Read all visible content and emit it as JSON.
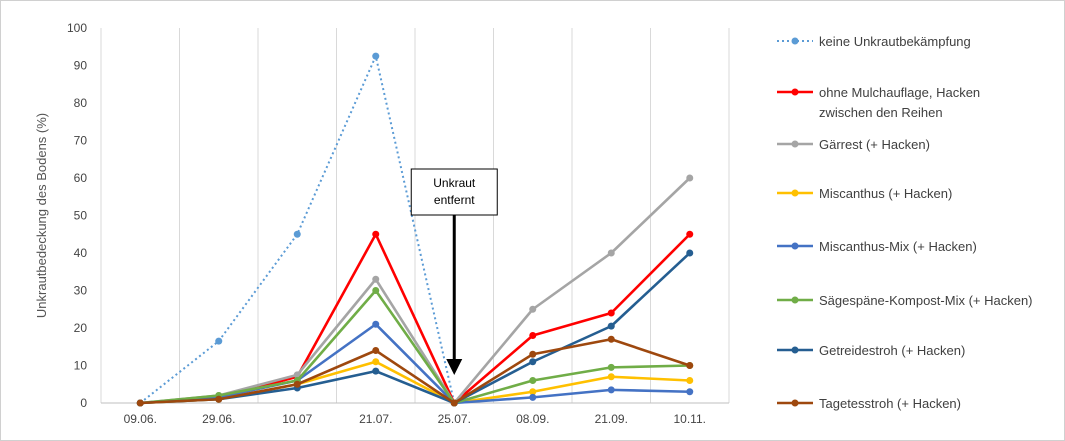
{
  "chart_data": {
    "type": "line",
    "title": "",
    "xlabel": "",
    "ylabel": "Unkrautbedeckung des Bodens (%)",
    "ylim": [
      0,
      100
    ],
    "yticks": [
      0,
      10,
      20,
      30,
      40,
      50,
      60,
      70,
      80,
      90,
      100
    ],
    "categories": [
      "09.06.",
      "29.06.",
      "10.07",
      "21.07.",
      "25.07.",
      "08.09.",
      "21.09.",
      "10.11."
    ],
    "grid": "vertical",
    "legend_position": "right",
    "series": [
      {
        "name": "keine Unkrautbekämpfung",
        "color": "#5b9bd5",
        "dashed": true,
        "values": [
          0,
          16.5,
          45,
          92.5,
          0,
          null,
          null,
          null
        ]
      },
      {
        "name": "ohne Mulchauflage, Hacken zwischen den Reihen",
        "legend_lines": [
          "ohne Mulchauflage, Hacken",
          "zwischen den Reihen"
        ],
        "color": "#ff0000",
        "dashed": false,
        "values": [
          0,
          1.5,
          7,
          45,
          0,
          18,
          24,
          45
        ]
      },
      {
        "name": "Gärrest (+ Hacken)",
        "color": "#a5a5a5",
        "dashed": false,
        "values": [
          0,
          2,
          7.5,
          33,
          0,
          25,
          40,
          60
        ]
      },
      {
        "name": "Miscanthus (+ Hacken)",
        "color": "#ffc000",
        "dashed": false,
        "values": [
          0,
          1,
          5,
          11,
          0,
          3,
          7,
          6
        ]
      },
      {
        "name": "Miscanthus-Mix (+ Hacken)",
        "color": "#4472c4",
        "dashed": false,
        "values": [
          0,
          1.5,
          6,
          21,
          0,
          1.5,
          3.5,
          3
        ]
      },
      {
        "name": "Sägespäne-Kompost-Mix (+ Hacken)",
        "color": "#70ad47",
        "dashed": false,
        "values": [
          0,
          2,
          6,
          30,
          0,
          6,
          9.5,
          10
        ]
      },
      {
        "name": "Getreidestroh (+ Hacken)",
        "color": "#255e91",
        "dashed": false,
        "values": [
          0,
          1,
          4,
          8.5,
          0,
          11,
          20.5,
          40
        ]
      },
      {
        "name": "Tagetesstroh (+ Hacken)",
        "color": "#9e480e",
        "dashed": false,
        "values": [
          0,
          1,
          5,
          14,
          0,
          13,
          17,
          10
        ]
      }
    ],
    "annotations": [
      {
        "lines": [
          "Unkraut",
          "entfernt"
        ],
        "category": "25.07.",
        "arrow_to_value": 8
      }
    ]
  }
}
